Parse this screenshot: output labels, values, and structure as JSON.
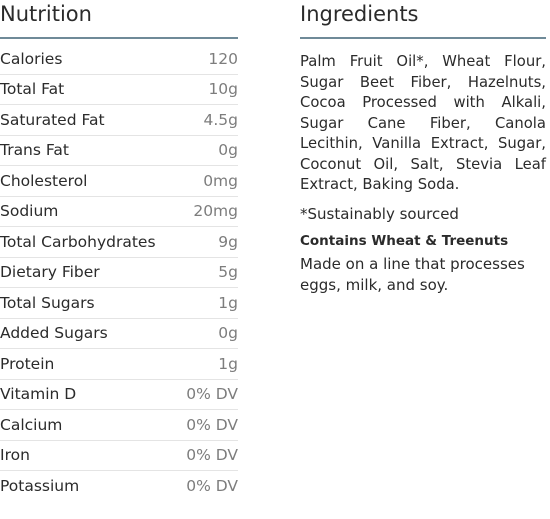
{
  "nutrition": {
    "title": "Nutrition",
    "rows": [
      {
        "label": "Calories",
        "value": "120"
      },
      {
        "label": "Total Fat",
        "value": "10g"
      },
      {
        "label": "Saturated Fat",
        "value": "4.5g"
      },
      {
        "label": "Trans Fat",
        "value": "0g"
      },
      {
        "label": "Cholesterol",
        "value": "0mg"
      },
      {
        "label": "Sodium",
        "value": "20mg"
      },
      {
        "label": "Total Carbohydrates",
        "value": "9g"
      },
      {
        "label": "Dietary Fiber",
        "value": "5g"
      },
      {
        "label": "Total Sugars",
        "value": "1g"
      },
      {
        "label": "Added Sugars",
        "value": "0g"
      },
      {
        "label": "Protein",
        "value": "1g"
      },
      {
        "label": "Vitamin D",
        "value": "0% DV"
      },
      {
        "label": "Calcium",
        "value": "0% DV"
      },
      {
        "label": "Iron",
        "value": "0% DV"
      },
      {
        "label": "Potassium",
        "value": "0% DV"
      }
    ]
  },
  "ingredients": {
    "title": "Ingredients",
    "text": "Palm Fruit Oil*, Wheat Flour, Sugar Beet Fiber, Hazelnuts, Cocoa Processed with Alkali, Sugar Cane Fiber, Canola Lecithin, Vanilla Extract, Sugar, Coconut Oil, Salt, Stevia Leaf Extract, Baking Soda.",
    "note": "*Sustainably sourced",
    "allergen": "Contains Wheat & Treenuts",
    "facility": "Made on a line that processes eggs, milk, and soy."
  }
}
